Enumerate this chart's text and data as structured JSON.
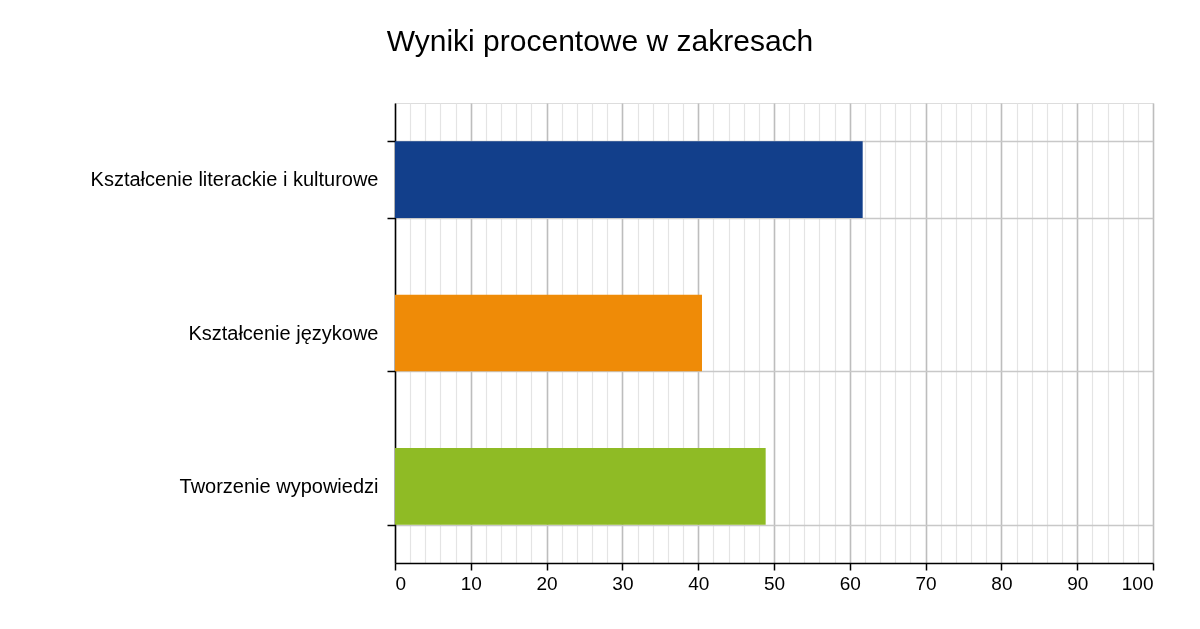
{
  "chart_data": {
    "type": "bar",
    "orientation": "horizontal",
    "title": "Wyniki procentowe w zakresach",
    "categories": [
      "Kształcenie literackie i kulturowe",
      "Kształcenie językowe",
      "Tworzenie wypowiedzi"
    ],
    "values": [
      61.7,
      40.5,
      48.9
    ],
    "colors": [
      "#123f8b",
      "#ef8b07",
      "#8fbb25"
    ],
    "xlim": [
      0,
      100
    ],
    "xticks": [
      0,
      {
        "value": 2,
        "label": null
      },
      {
        "value": 4,
        "label": null
      },
      {
        "value": 6,
        "label": null
      },
      {
        "value": 8,
        "label": null
      },
      10,
      {
        "value": 12,
        "label": null
      },
      {
        "value": 14,
        "label": null
      },
      {
        "value": 16,
        "label": null
      },
      {
        "value": 18,
        "label": null
      },
      20,
      {
        "value": 22,
        "label": null
      },
      {
        "value": 24,
        "label": null
      },
      {
        "value": 26,
        "label": null
      },
      {
        "value": 28,
        "label": null
      },
      30,
      {
        "value": 32,
        "label": null
      },
      {
        "value": 34,
        "label": null
      },
      {
        "value": 36,
        "label": null
      },
      {
        "value": 38,
        "label": null
      },
      40,
      {
        "value": 42,
        "label": null
      },
      {
        "value": 44,
        "label": null
      },
      {
        "value": 46,
        "label": null
      },
      {
        "value": 48,
        "label": null
      },
      50,
      {
        "value": 52,
        "label": null
      },
      {
        "value": 54,
        "label": null
      },
      {
        "value": 56,
        "label": null
      },
      {
        "value": 58,
        "label": null
      },
      60,
      {
        "value": 62,
        "label": null
      },
      {
        "value": 64,
        "label": null
      },
      {
        "value": 66,
        "label": null
      },
      {
        "value": 68,
        "label": null
      },
      70,
      {
        "value": 72,
        "label": null
      },
      {
        "value": 74,
        "label": null
      },
      {
        "value": 76,
        "label": null
      },
      {
        "value": 78,
        "label": null
      },
      80,
      {
        "value": 82,
        "label": null
      },
      {
        "value": 84,
        "label": null
      },
      {
        "value": 86,
        "label": null
      },
      {
        "value": 88,
        "label": null
      },
      90,
      {
        "value": 92,
        "label": null
      },
      {
        "value": 94,
        "label": null
      },
      {
        "value": 96,
        "label": null
      },
      {
        "value": 98,
        "label": null
      },
      100
    ],
    "grid": true
  }
}
